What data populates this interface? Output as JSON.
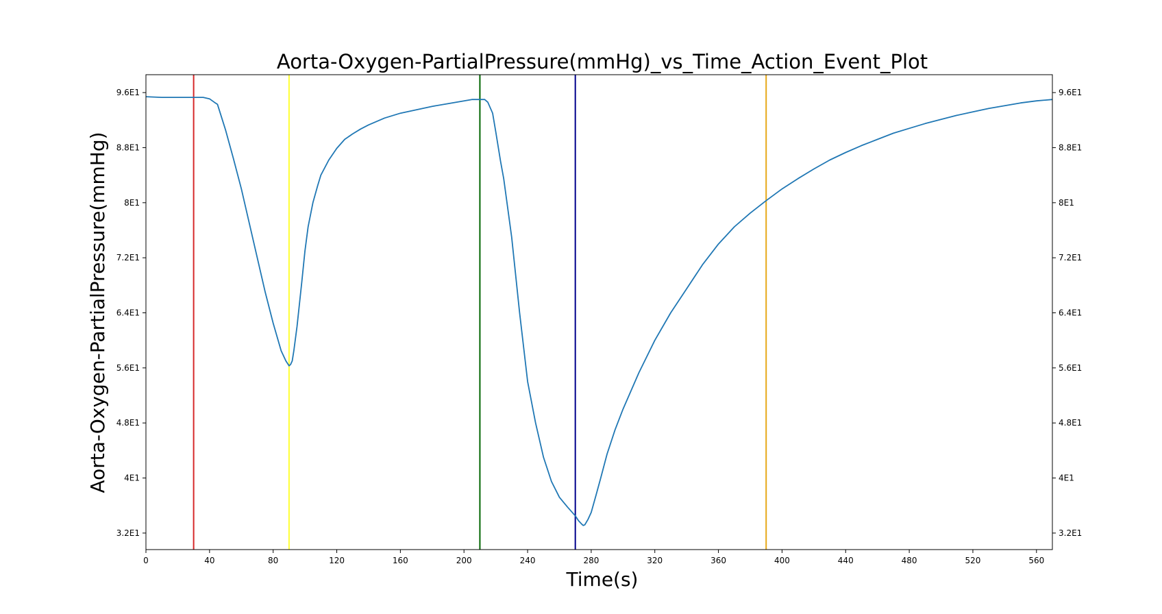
{
  "chart_data": {
    "type": "line",
    "title": "Aorta-Oxygen-PartialPressure(mmHg)_vs_Time_Action_Event_Plot",
    "xlabel": "Time(s)",
    "ylabel": "Aorta-Oxygen-PartialPressure(mmHg)",
    "xlim": [
      0,
      570
    ],
    "ylim": [
      29.6,
      98.6
    ],
    "x_ticks": [
      0,
      40,
      80,
      120,
      160,
      200,
      240,
      280,
      320,
      360,
      400,
      440,
      480,
      520,
      560
    ],
    "x_tick_labels": [
      "0",
      "40",
      "80",
      "120",
      "160",
      "200",
      "240",
      "280",
      "320",
      "360",
      "400",
      "440",
      "480",
      "520",
      "560"
    ],
    "y_ticks": [
      32,
      40,
      48,
      56,
      64,
      72,
      80,
      88,
      96
    ],
    "y_tick_labels": [
      "3.2E1",
      "4E1",
      "4.8E1",
      "5.6E1",
      "6.4E1",
      "7.2E1",
      "8E1",
      "8.8E1",
      "9.6E1"
    ],
    "grid": false,
    "legend": "none",
    "line_color": "#1f77b4",
    "series": [
      {
        "x": [
          0,
          10,
          20,
          30,
          36,
          40,
          43,
          45,
          50,
          55,
          60,
          65,
          70,
          75,
          80,
          85,
          88,
          90,
          91,
          92,
          93,
          95,
          98,
          100,
          102,
          105,
          108,
          110,
          115,
          120,
          125,
          130,
          135,
          140,
          150,
          160,
          170,
          180,
          190,
          200,
          205,
          210,
          213,
          215,
          218,
          220,
          223,
          225,
          230,
          235,
          240,
          245,
          250,
          255,
          260,
          265,
          270,
          272,
          274,
          275,
          276,
          278,
          280,
          283,
          286,
          290,
          295,
          300,
          310,
          320,
          330,
          340,
          350,
          360,
          370,
          380,
          390,
          400,
          410,
          420,
          430,
          440,
          450,
          460,
          470,
          480,
          490,
          500,
          510,
          520,
          530,
          540,
          550,
          560,
          570
        ],
        "y": [
          95.4,
          95.3,
          95.3,
          95.3,
          95.3,
          95.1,
          94.6,
          94.3,
          90.6,
          86.4,
          82.0,
          77.0,
          72.0,
          67.0,
          62.5,
          58.5,
          57.0,
          56.3,
          56.5,
          57.0,
          58.5,
          62.0,
          68.5,
          73.0,
          76.5,
          80.0,
          82.5,
          84.0,
          86.2,
          87.9,
          89.2,
          90.0,
          90.7,
          91.3,
          92.3,
          93.0,
          93.5,
          94.0,
          94.4,
          94.8,
          95.0,
          95.0,
          95.0,
          94.6,
          93.0,
          90.3,
          86.0,
          83.5,
          75.0,
          64.0,
          54.0,
          48.0,
          43.0,
          39.5,
          37.2,
          35.8,
          34.5,
          33.8,
          33.3,
          33.1,
          33.2,
          34.0,
          35.0,
          37.5,
          40.0,
          43.5,
          47.0,
          50.0,
          55.3,
          60.0,
          64.0,
          67.5,
          71.0,
          74.0,
          76.5,
          78.5,
          80.3,
          82.0,
          83.5,
          84.9,
          86.2,
          87.3,
          88.3,
          89.2,
          90.1,
          90.8,
          91.5,
          92.1,
          92.7,
          93.2,
          93.7,
          94.1,
          94.5,
          94.8,
          95.0
        ]
      }
    ],
    "event_lines": [
      {
        "x": 30,
        "color": "#d62728"
      },
      {
        "x": 90,
        "color": "#ffff33"
      },
      {
        "x": 210,
        "color": "#006400"
      },
      {
        "x": 270,
        "color": "#00008b"
      },
      {
        "x": 390,
        "color": "#e6a817"
      }
    ]
  }
}
